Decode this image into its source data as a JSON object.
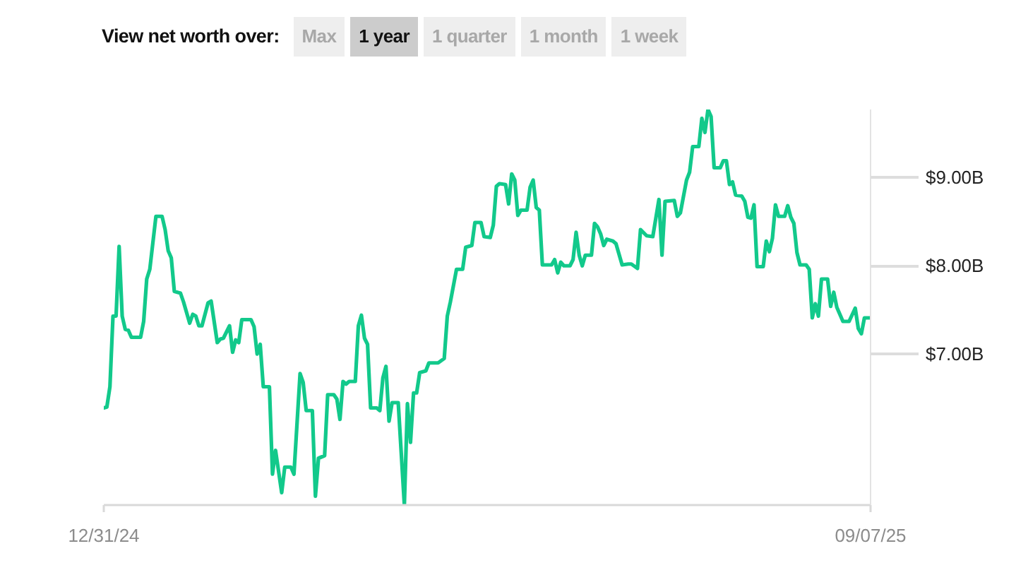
{
  "chart_data": {
    "type": "line",
    "title": "View net worth over:",
    "annotations": [
      "Max",
      "1 year",
      "1 quarter",
      "1 month",
      "1 week"
    ],
    "x": [
      "2024-12-31",
      "2025-01-01",
      "2025-01-02",
      "2025-01-03",
      "2025-01-04",
      "2025-01-05",
      "2025-01-06",
      "2025-01-07",
      "2025-01-08",
      "2025-01-09",
      "2025-01-12",
      "2025-01-13",
      "2025-01-14",
      "2025-01-15",
      "2025-01-17",
      "2025-01-19",
      "2025-01-20",
      "2025-01-21",
      "2025-01-22",
      "2025-01-23",
      "2025-01-25",
      "2025-01-26",
      "2025-01-28",
      "2025-01-29",
      "2025-01-30",
      "2025-01-31",
      "2025-02-01",
      "2025-02-03",
      "2025-02-04",
      "2025-02-06",
      "2025-02-07",
      "2025-02-08",
      "2025-02-10",
      "2025-02-11",
      "2025-02-12",
      "2025-02-13",
      "2025-02-14",
      "2025-02-17",
      "2025-02-18",
      "2025-02-19",
      "2025-02-20",
      "2025-02-21",
      "2025-02-23",
      "2025-02-24",
      "2025-02-25",
      "2025-02-27",
      "2025-02-28",
      "2025-03-02",
      "2025-03-03",
      "2025-03-05",
      "2025-03-06",
      "2025-03-07",
      "2025-03-09",
      "2025-03-10",
      "2025-03-11",
      "2025-03-13",
      "2025-03-14",
      "2025-03-16",
      "2025-03-17",
      "2025-03-18",
      "2025-03-19",
      "2025-03-20",
      "2025-03-21",
      "2025-03-23",
      "2025-03-24",
      "2025-03-25",
      "2025-03-26",
      "2025-03-27",
      "2025-03-28",
      "2025-03-30",
      "2025-03-31",
      "2025-04-01",
      "2025-04-02",
      "2025-04-03",
      "2025-04-04",
      "2025-04-06",
      "2025-04-08",
      "2025-04-09",
      "2025-04-10",
      "2025-04-11",
      "2025-04-12",
      "2025-04-13",
      "2025-04-15",
      "2025-04-16",
      "2025-04-19",
      "2025-04-21",
      "2025-04-22",
      "2025-04-23",
      "2025-04-25",
      "2025-04-27",
      "2025-04-28",
      "2025-04-30",
      "2025-05-01",
      "2025-05-03",
      "2025-05-04",
      "2025-05-06",
      "2025-05-07",
      "2025-05-08",
      "2025-05-09",
      "2025-05-11",
      "2025-05-12",
      "2025-05-13",
      "2025-05-14",
      "2025-05-15",
      "2025-05-16",
      "2025-05-18",
      "2025-05-19",
      "2025-05-20",
      "2025-05-21",
      "2025-05-22",
      "2025-05-23",
      "2025-05-26",
      "2025-05-27",
      "2025-05-28",
      "2025-05-29",
      "2025-05-30",
      "2025-06-01",
      "2025-06-02",
      "2025-06-03",
      "2025-06-04",
      "2025-06-05",
      "2025-06-06",
      "2025-06-08",
      "2025-06-09",
      "2025-06-10",
      "2025-06-11",
      "2025-06-12",
      "2025-06-13",
      "2025-06-15",
      "2025-06-16",
      "2025-06-18",
      "2025-06-20",
      "2025-06-21",
      "2025-06-23",
      "2025-06-24",
      "2025-06-26",
      "2025-06-28",
      "2025-06-30",
      "2025-07-01",
      "2025-07-02",
      "2025-07-05",
      "2025-07-06",
      "2025-07-07",
      "2025-07-09",
      "2025-07-10",
      "2025-07-11",
      "2025-07-13",
      "2025-07-14",
      "2025-07-15",
      "2025-07-16",
      "2025-07-17",
      "2025-07-18",
      "2025-07-20",
      "2025-07-21",
      "2025-07-22",
      "2025-07-23",
      "2025-07-24",
      "2025-07-25",
      "2025-07-27",
      "2025-07-28",
      "2025-07-29",
      "2025-07-30",
      "2025-07-31",
      "2025-08-01",
      "2025-08-03",
      "2025-08-04",
      "2025-08-05",
      "2025-08-06",
      "2025-08-07",
      "2025-08-08",
      "2025-08-10",
      "2025-08-11",
      "2025-08-12",
      "2025-08-13",
      "2025-08-14",
      "2025-08-15",
      "2025-08-17",
      "2025-08-18",
      "2025-08-19",
      "2025-08-20",
      "2025-08-21",
      "2025-08-22",
      "2025-08-24",
      "2025-08-25",
      "2025-08-26",
      "2025-08-27",
      "2025-08-29",
      "2025-08-31",
      "2025-09-02",
      "2025-09-03",
      "2025-09-04",
      "2025-09-05",
      "2025-09-07"
    ],
    "series": [
      {
        "color": "#12c98b",
        "values": [
          6.39,
          6.4,
          6.63,
          7.43,
          7.43,
          8.22,
          7.43,
          7.28,
          7.27,
          7.19,
          7.19,
          7.37,
          7.85,
          7.96,
          8.56,
          8.56,
          8.41,
          8.17,
          8.09,
          7.71,
          7.69,
          7.59,
          7.35,
          7.45,
          7.43,
          7.32,
          7.32,
          7.58,
          7.6,
          7.13,
          7.17,
          7.18,
          7.32,
          7.02,
          7.16,
          7.13,
          7.39,
          7.39,
          7.31,
          7.0,
          7.11,
          6.63,
          6.63,
          5.64,
          5.91,
          5.43,
          5.72,
          5.72,
          5.64,
          6.78,
          6.68,
          6.36,
          6.36,
          5.39,
          5.82,
          5.85,
          6.54,
          6.54,
          6.49,
          6.26,
          6.69,
          6.66,
          6.69,
          6.69,
          7.32,
          7.44,
          7.18,
          7.11,
          6.39,
          6.39,
          6.36,
          6.73,
          6.86,
          6.24,
          6.45,
          6.45,
          5.29,
          6.44,
          6.0,
          6.56,
          6.56,
          6.79,
          6.81,
          6.9,
          6.9,
          6.95,
          7.43,
          7.59,
          7.96,
          7.96,
          8.21,
          8.23,
          8.49,
          8.49,
          8.33,
          8.32,
          8.46,
          8.9,
          8.93,
          8.92,
          8.7,
          9.04,
          8.97,
          8.57,
          8.63,
          8.63,
          8.89,
          8.97,
          8.66,
          8.63,
          8.01,
          8.01,
          8.07,
          7.92,
          8.04,
          8.0,
          8.0,
          8.07,
          8.38,
          8.12,
          8.0,
          8.12,
          8.12,
          8.48,
          8.44,
          8.36,
          8.23,
          8.3,
          8.28,
          8.25,
          8.01,
          8.02,
          8.02,
          7.97,
          8.41,
          8.34,
          8.33,
          8.75,
          8.12,
          8.73,
          8.74,
          8.56,
          8.6,
          8.97,
          9.06,
          9.35,
          9.35,
          9.67,
          9.51,
          9.77,
          9.69,
          9.11,
          9.11,
          9.19,
          9.19,
          8.92,
          8.95,
          8.8,
          8.79,
          8.73,
          8.55,
          8.54,
          8.69,
          7.99,
          7.99,
          8.28,
          8.16,
          8.31,
          8.69,
          8.56,
          8.56,
          8.68,
          8.55,
          8.48,
          8.15,
          8.01,
          8.01,
          7.96,
          7.41,
          7.57,
          7.43,
          7.85,
          7.85,
          7.54,
          7.7,
          7.53,
          7.37,
          7.37,
          7.52,
          7.29,
          7.23,
          7.41,
          7.41
        ]
      }
    ],
    "xlim": [
      "2024-12-31",
      "2025-09-07"
    ],
    "xticks": [
      {
        "value": "2024-12-31",
        "label": "12/31/24"
      },
      {
        "value": "2025-09-07",
        "label": "09/07/25"
      }
    ],
    "ylim": [
      5.29,
      9.77
    ],
    "yticks": [
      {
        "value": 7,
        "label": "$7.00B"
      },
      {
        "value": 8,
        "label": "$8.00B"
      },
      {
        "value": 9,
        "label": "$9.00B"
      }
    ]
  }
}
